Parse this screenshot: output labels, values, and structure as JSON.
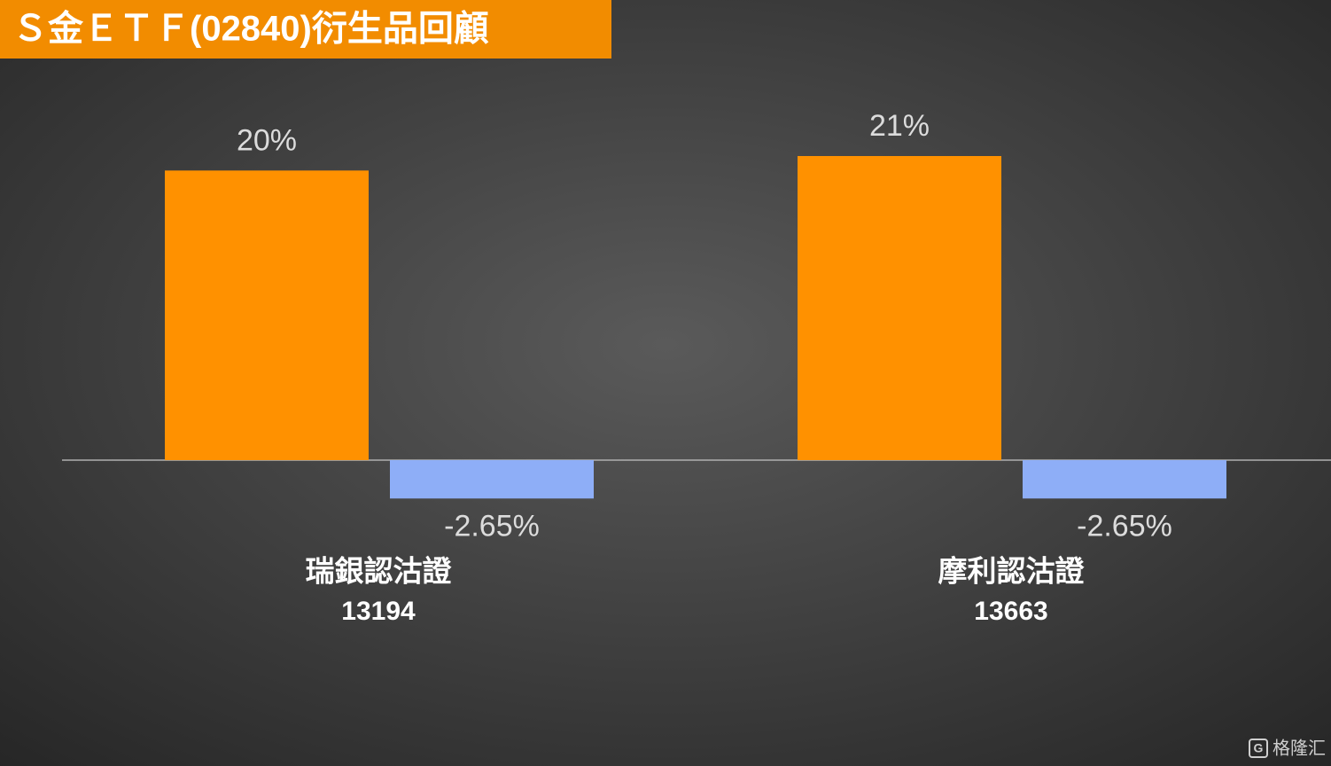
{
  "chart_data": {
    "type": "bar",
    "title": "Ｓ金ＥＴＦ(02840)衍生品回顧",
    "categories": [
      [
        "瑞銀認沽證",
        "13194"
      ],
      [
        "摩利認沽證",
        "13663"
      ]
    ],
    "series": [
      {
        "color": "#ff9100",
        "values": [
          20,
          21
        ],
        "value_labels": [
          "20%",
          "21%"
        ]
      },
      {
        "color": "#8eaef7",
        "values": [
          -2.65,
          -2.65
        ],
        "value_labels": [
          "-2.65%",
          "-2.65%"
        ]
      }
    ],
    "watermark": "格隆汇"
  }
}
